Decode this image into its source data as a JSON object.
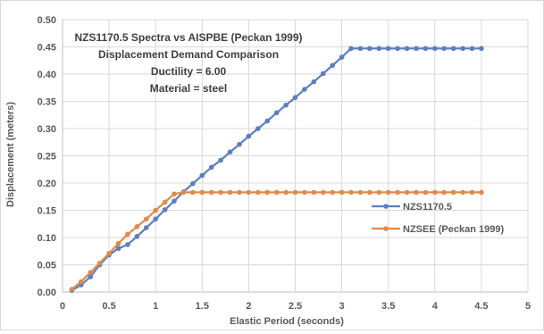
{
  "chart_data": {
    "type": "line",
    "title_lines": [
      "NZS1170.5 Spectra vs AISPBE (Peckan 1999)",
      "Displacement Demand Comparison",
      "Ductility = 6.00",
      "Material = steel"
    ],
    "xlabel": "Elastic Period (seconds)",
    "ylabel": "Displacement (meters)",
    "xlim": [
      0,
      5
    ],
    "ylim": [
      0,
      0.5
    ],
    "x_ticks": [
      "0",
      "0.5",
      "1",
      "1.5",
      "2",
      "2.5",
      "3",
      "3.5",
      "4",
      "4.5",
      "5"
    ],
    "y_ticks": [
      "0.00",
      "0.05",
      "0.10",
      "0.15",
      "0.20",
      "0.25",
      "0.30",
      "0.35",
      "0.40",
      "0.45",
      "0.50"
    ],
    "grid": true,
    "legend_position": "right",
    "series": [
      {
        "name": "NZS1170.5",
        "color": "#5b7fbf",
        "x": [
          0.1,
          0.2,
          0.3,
          0.4,
          0.5,
          0.6,
          0.7,
          0.8,
          0.9,
          1.0,
          1.1,
          1.2,
          1.3,
          1.4,
          1.5,
          1.6,
          1.7,
          1.8,
          1.9,
          2.0,
          2.1,
          2.2,
          2.3,
          2.4,
          2.5,
          2.6,
          2.7,
          2.8,
          2.9,
          3.0,
          3.1,
          3.2,
          3.3,
          3.4,
          3.5,
          3.6,
          3.7,
          3.8,
          3.9,
          4.0,
          4.1,
          4.2,
          4.3,
          4.4,
          4.5
        ],
        "values": [
          0.003,
          0.013,
          0.028,
          0.05,
          0.068,
          0.08,
          0.087,
          0.102,
          0.118,
          0.134,
          0.151,
          0.167,
          0.184,
          0.199,
          0.214,
          0.229,
          0.242,
          0.257,
          0.271,
          0.286,
          0.3,
          0.314,
          0.329,
          0.343,
          0.357,
          0.372,
          0.386,
          0.401,
          0.416,
          0.431,
          0.447,
          0.447,
          0.447,
          0.447,
          0.447,
          0.447,
          0.447,
          0.447,
          0.447,
          0.447,
          0.447,
          0.447,
          0.447,
          0.447,
          0.447
        ]
      },
      {
        "name": "NZSEE (Peckan 1999)",
        "color": "#e08a4c",
        "x": [
          0.1,
          0.2,
          0.3,
          0.4,
          0.5,
          0.6,
          0.7,
          0.8,
          0.9,
          1.0,
          1.1,
          1.2,
          1.3,
          1.4,
          1.5,
          1.6,
          1.7,
          1.8,
          1.9,
          2.0,
          2.1,
          2.2,
          2.3,
          2.4,
          2.5,
          2.6,
          2.7,
          2.8,
          2.9,
          3.0,
          3.1,
          3.2,
          3.3,
          3.4,
          3.5,
          3.6,
          3.7,
          3.8,
          3.9,
          4.0,
          4.1,
          4.2,
          4.3,
          4.4,
          4.5
        ],
        "values": [
          0.005,
          0.019,
          0.036,
          0.053,
          0.071,
          0.089,
          0.106,
          0.12,
          0.134,
          0.15,
          0.165,
          0.18,
          0.183,
          0.183,
          0.183,
          0.183,
          0.183,
          0.183,
          0.183,
          0.183,
          0.183,
          0.183,
          0.183,
          0.183,
          0.183,
          0.183,
          0.183,
          0.183,
          0.183,
          0.183,
          0.183,
          0.183,
          0.183,
          0.183,
          0.183,
          0.183,
          0.183,
          0.183,
          0.183,
          0.183,
          0.183,
          0.183,
          0.183,
          0.183,
          0.183
        ]
      }
    ]
  }
}
